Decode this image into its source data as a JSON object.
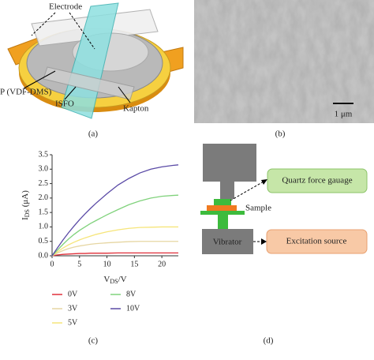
{
  "panel_a": {
    "labels": [
      "Electrode",
      "P (VDF-DMS)",
      "ISFO",
      "Kapton"
    ]
  },
  "panel_b": {
    "scale_bar": "1 μm"
  },
  "panel_d": {
    "labels": [
      "Quartz force gauage",
      "Sample",
      "Vibrator",
      "Excitation source"
    ]
  },
  "captions": [
    "(a)",
    "(b)",
    "(c)",
    "(d)"
  ],
  "chart_data": {
    "type": "line",
    "ylabel": [
      "I",
      "DS",
      " (μA)"
    ],
    "xlabel": [
      "V",
      "DS",
      "/V"
    ],
    "x": [
      0,
      1,
      2,
      3,
      4,
      5,
      6,
      7,
      8,
      10,
      12,
      14,
      16,
      18,
      20,
      22,
      23
    ],
    "xlim": [
      0,
      23
    ],
    "xticks": [
      0,
      5,
      10,
      15,
      20
    ],
    "ylim": [
      0,
      3.5
    ],
    "yticks": [
      {
        "value": 0,
        "label": "0.0"
      },
      0.5,
      {
        "value": 1,
        "label": "1.0"
      },
      1.5,
      {
        "value": 2,
        "label": "2.0"
      },
      2.5,
      {
        "value": 3,
        "label": "3.0"
      },
      3.5
    ],
    "series": [
      {
        "name": "0V",
        "color": "#e0303a",
        "values": [
          0,
          0.03,
          0.05,
          0.06,
          0.07,
          0.08,
          0.08,
          0.09,
          0.09,
          0.09,
          0.1,
          0.1,
          0.1,
          0.1,
          0.1,
          0.1,
          0.1
        ]
      },
      {
        "name": "3V",
        "color": "#e6d6a2",
        "values": [
          0,
          0.1,
          0.18,
          0.25,
          0.3,
          0.34,
          0.37,
          0.4,
          0.42,
          0.45,
          0.47,
          0.49,
          0.5,
          0.5,
          0.5,
          0.5,
          0.5
        ]
      },
      {
        "name": "5V",
        "color": "#f6e57a",
        "values": [
          0,
          0.14,
          0.27,
          0.38,
          0.47,
          0.55,
          0.62,
          0.68,
          0.74,
          0.83,
          0.9,
          0.95,
          0.98,
          0.99,
          1.0,
          1.0,
          1.0
        ]
      },
      {
        "name": "8V",
        "color": "#80d27c",
        "values": [
          0,
          0.2,
          0.4,
          0.58,
          0.74,
          0.88,
          1.0,
          1.12,
          1.22,
          1.42,
          1.6,
          1.77,
          1.9,
          2.0,
          2.06,
          2.09,
          2.1
        ]
      },
      {
        "name": "10V",
        "color": "#5a4aa6",
        "values": [
          0,
          0.28,
          0.55,
          0.8,
          1.03,
          1.25,
          1.45,
          1.64,
          1.82,
          2.15,
          2.45,
          2.68,
          2.87,
          3.0,
          3.08,
          3.13,
          3.15
        ]
      }
    ]
  }
}
